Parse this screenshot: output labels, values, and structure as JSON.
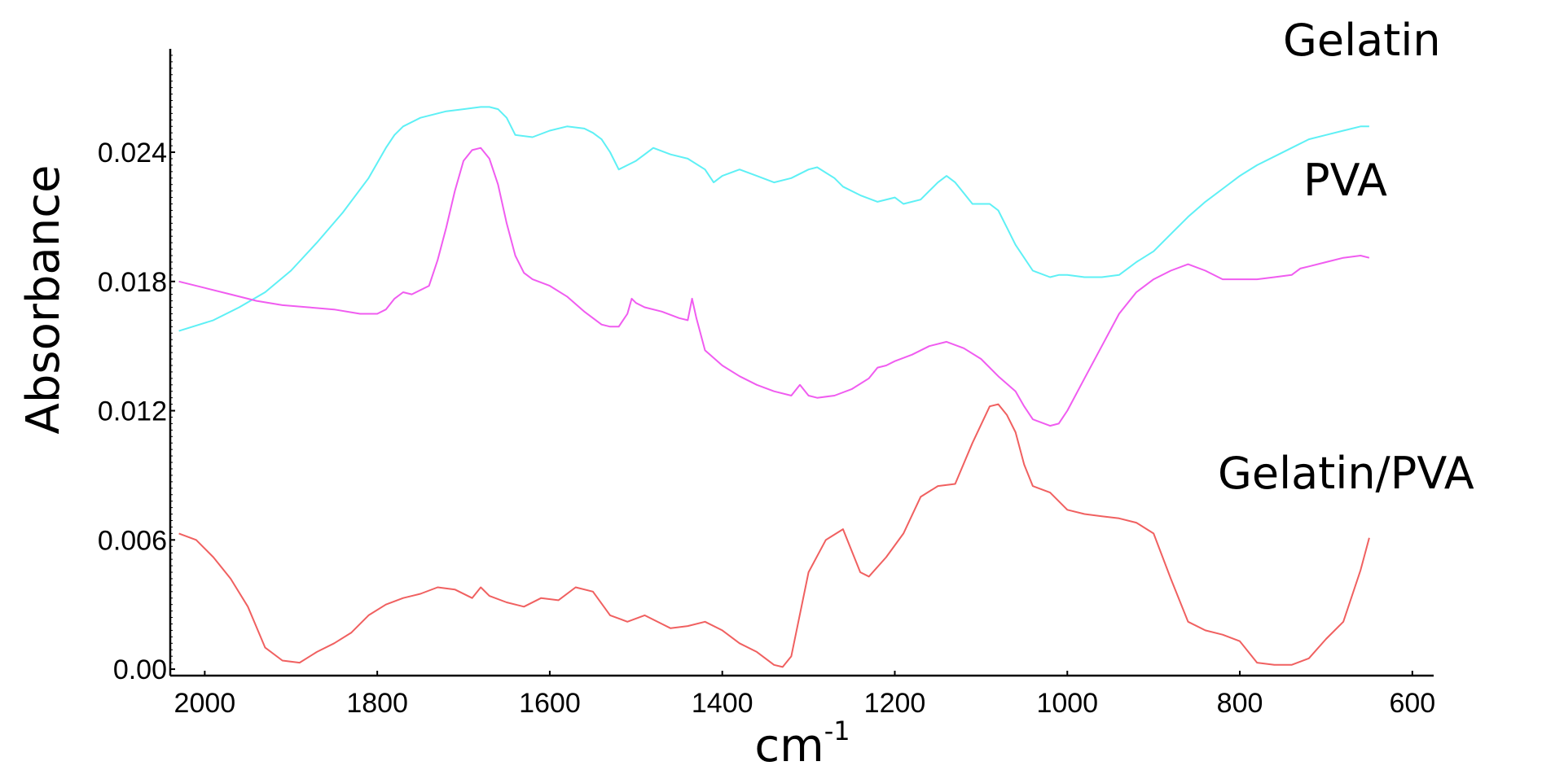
{
  "chart_data": {
    "type": "line",
    "xlabel": "cm",
    "xlabel_sup": "-1",
    "ylabel": "Absorbance",
    "xlim": [
      2040,
      580
    ],
    "ylim": [
      -0.0003,
      0.0288
    ],
    "x_ticks": [
      {
        "value": 2000,
        "label": "2000"
      },
      {
        "value": 1800,
        "label": "1800"
      },
      {
        "value": 1600,
        "label": "1600"
      },
      {
        "value": 1400,
        "label": "1400"
      },
      {
        "value": 1200,
        "label": "1200"
      },
      {
        "value": 1000,
        "label": "1000"
      },
      {
        "value": 800,
        "label": "800"
      },
      {
        "value": 600,
        "label": "600"
      }
    ],
    "y_ticks": [
      {
        "value": 0.0,
        "label": "0.00"
      },
      {
        "value": 0.006,
        "label": "0.006"
      },
      {
        "value": 0.012,
        "label": "0.012"
      },
      {
        "value": 0.018,
        "label": "0.018"
      },
      {
        "value": 0.024,
        "label": "0.024"
      }
    ],
    "grid": false,
    "series": [
      {
        "name": "Gelatin",
        "color": "#5ef0f5",
        "x": [
          2030,
          1990,
          1960,
          1930,
          1900,
          1870,
          1840,
          1810,
          1790,
          1780,
          1770,
          1750,
          1720,
          1700,
          1680,
          1670,
          1660,
          1650,
          1640,
          1620,
          1600,
          1580,
          1560,
          1550,
          1540,
          1530,
          1520,
          1500,
          1490,
          1480,
          1460,
          1440,
          1420,
          1410,
          1400,
          1380,
          1360,
          1340,
          1320,
          1300,
          1290,
          1270,
          1260,
          1240,
          1220,
          1200,
          1190,
          1170,
          1160,
          1150,
          1140,
          1130,
          1120,
          1110,
          1090,
          1080,
          1070,
          1060,
          1040,
          1020,
          1010,
          1000,
          980,
          960,
          940,
          930,
          920,
          900,
          880,
          860,
          840,
          820,
          800,
          780,
          760,
          740,
          720,
          700,
          680,
          660,
          650
        ],
        "y": [
          0.0157,
          0.0162,
          0.0168,
          0.0175,
          0.0185,
          0.0198,
          0.0212,
          0.0228,
          0.0242,
          0.0248,
          0.0252,
          0.0256,
          0.0259,
          0.026,
          0.0261,
          0.0261,
          0.026,
          0.0256,
          0.0248,
          0.0247,
          0.025,
          0.0252,
          0.0251,
          0.0249,
          0.0246,
          0.024,
          0.0232,
          0.0236,
          0.0239,
          0.0242,
          0.0239,
          0.0237,
          0.0232,
          0.0226,
          0.0229,
          0.0232,
          0.0229,
          0.0226,
          0.0228,
          0.0232,
          0.0233,
          0.0228,
          0.0224,
          0.022,
          0.0217,
          0.0219,
          0.0216,
          0.0218,
          0.0222,
          0.0226,
          0.0229,
          0.0226,
          0.0221,
          0.0216,
          0.0216,
          0.0213,
          0.0205,
          0.0197,
          0.0185,
          0.0182,
          0.0183,
          0.0183,
          0.0182,
          0.0182,
          0.0183,
          0.0186,
          0.0189,
          0.0194,
          0.0202,
          0.021,
          0.0217,
          0.0223,
          0.0229,
          0.0234,
          0.0238,
          0.0242,
          0.0246,
          0.0248,
          0.025,
          0.0252,
          0.0252
        ]
      },
      {
        "name": "PVA",
        "color": "#f05cf0",
        "x": [
          2030,
          2000,
          1970,
          1940,
          1910,
          1880,
          1850,
          1820,
          1800,
          1790,
          1780,
          1770,
          1760,
          1740,
          1730,
          1720,
          1710,
          1700,
          1690,
          1680,
          1670,
          1660,
          1650,
          1640,
          1630,
          1620,
          1600,
          1580,
          1560,
          1540,
          1530,
          1520,
          1510,
          1505,
          1500,
          1490,
          1470,
          1450,
          1440,
          1435,
          1430,
          1420,
          1400,
          1380,
          1360,
          1340,
          1320,
          1310,
          1300,
          1290,
          1270,
          1250,
          1230,
          1220,
          1210,
          1200,
          1180,
          1160,
          1140,
          1120,
          1100,
          1080,
          1060,
          1050,
          1040,
          1020,
          1010,
          1000,
          980,
          960,
          940,
          920,
          900,
          880,
          860,
          840,
          820,
          800,
          780,
          760,
          740,
          730,
          720,
          700,
          680,
          660,
          650
        ],
        "y": [
          0.018,
          0.0177,
          0.0174,
          0.0171,
          0.0169,
          0.0168,
          0.0167,
          0.0165,
          0.0165,
          0.0167,
          0.0172,
          0.0175,
          0.0174,
          0.0178,
          0.019,
          0.0205,
          0.0222,
          0.0236,
          0.0241,
          0.0242,
          0.0237,
          0.0225,
          0.0207,
          0.0192,
          0.0184,
          0.0181,
          0.0178,
          0.0173,
          0.0166,
          0.016,
          0.0159,
          0.0159,
          0.0165,
          0.0172,
          0.017,
          0.0168,
          0.0166,
          0.0163,
          0.0162,
          0.0172,
          0.0163,
          0.0148,
          0.0141,
          0.0136,
          0.0132,
          0.0129,
          0.0127,
          0.0132,
          0.0127,
          0.0126,
          0.0127,
          0.013,
          0.0135,
          0.014,
          0.0141,
          0.0143,
          0.0146,
          0.015,
          0.0152,
          0.0149,
          0.0144,
          0.0136,
          0.0129,
          0.0122,
          0.0116,
          0.0113,
          0.0114,
          0.012,
          0.0135,
          0.015,
          0.0165,
          0.0175,
          0.0181,
          0.0185,
          0.0188,
          0.0185,
          0.0181,
          0.0181,
          0.0181,
          0.0182,
          0.0183,
          0.0186,
          0.0187,
          0.0189,
          0.0191,
          0.0192,
          0.0191
        ]
      },
      {
        "name": "Gelatin/PVA",
        "color": "#f06060",
        "x": [
          2030,
          2010,
          1990,
          1970,
          1950,
          1930,
          1910,
          1890,
          1870,
          1850,
          1830,
          1810,
          1790,
          1770,
          1750,
          1730,
          1710,
          1690,
          1680,
          1670,
          1650,
          1630,
          1610,
          1590,
          1570,
          1550,
          1530,
          1510,
          1490,
          1470,
          1460,
          1440,
          1420,
          1400,
          1380,
          1360,
          1340,
          1330,
          1320,
          1300,
          1280,
          1260,
          1240,
          1230,
          1210,
          1190,
          1170,
          1150,
          1130,
          1110,
          1090,
          1080,
          1070,
          1060,
          1050,
          1040,
          1020,
          1000,
          980,
          960,
          940,
          920,
          900,
          880,
          860,
          840,
          820,
          800,
          780,
          760,
          740,
          720,
          700,
          680,
          660,
          650
        ],
        "y": [
          0.0063,
          0.006,
          0.0052,
          0.0042,
          0.0029,
          0.001,
          0.0004,
          0.0003,
          0.0008,
          0.0012,
          0.0017,
          0.0025,
          0.003,
          0.0033,
          0.0035,
          0.0038,
          0.0037,
          0.0033,
          0.0038,
          0.0034,
          0.0031,
          0.0029,
          0.0033,
          0.0032,
          0.0038,
          0.0036,
          0.0025,
          0.0022,
          0.0025,
          0.0021,
          0.0019,
          0.002,
          0.0022,
          0.0018,
          0.0012,
          0.0008,
          0.0002,
          0.0001,
          0.0006,
          0.0045,
          0.006,
          0.0065,
          0.0045,
          0.0043,
          0.0052,
          0.0063,
          0.008,
          0.0085,
          0.0086,
          0.0105,
          0.0122,
          0.0123,
          0.0118,
          0.011,
          0.0095,
          0.0085,
          0.0082,
          0.0074,
          0.0072,
          0.0071,
          0.007,
          0.0068,
          0.0063,
          0.0042,
          0.0022,
          0.0018,
          0.0016,
          0.0013,
          0.0003,
          0.0002,
          0.0002,
          0.0005,
          0.0014,
          0.0022,
          0.0046,
          0.0061
        ]
      }
    ],
    "series_labels": [
      {
        "text": "Gelatin"
      },
      {
        "text": "PVA"
      },
      {
        "text": "Gelatin/PVA"
      }
    ]
  }
}
